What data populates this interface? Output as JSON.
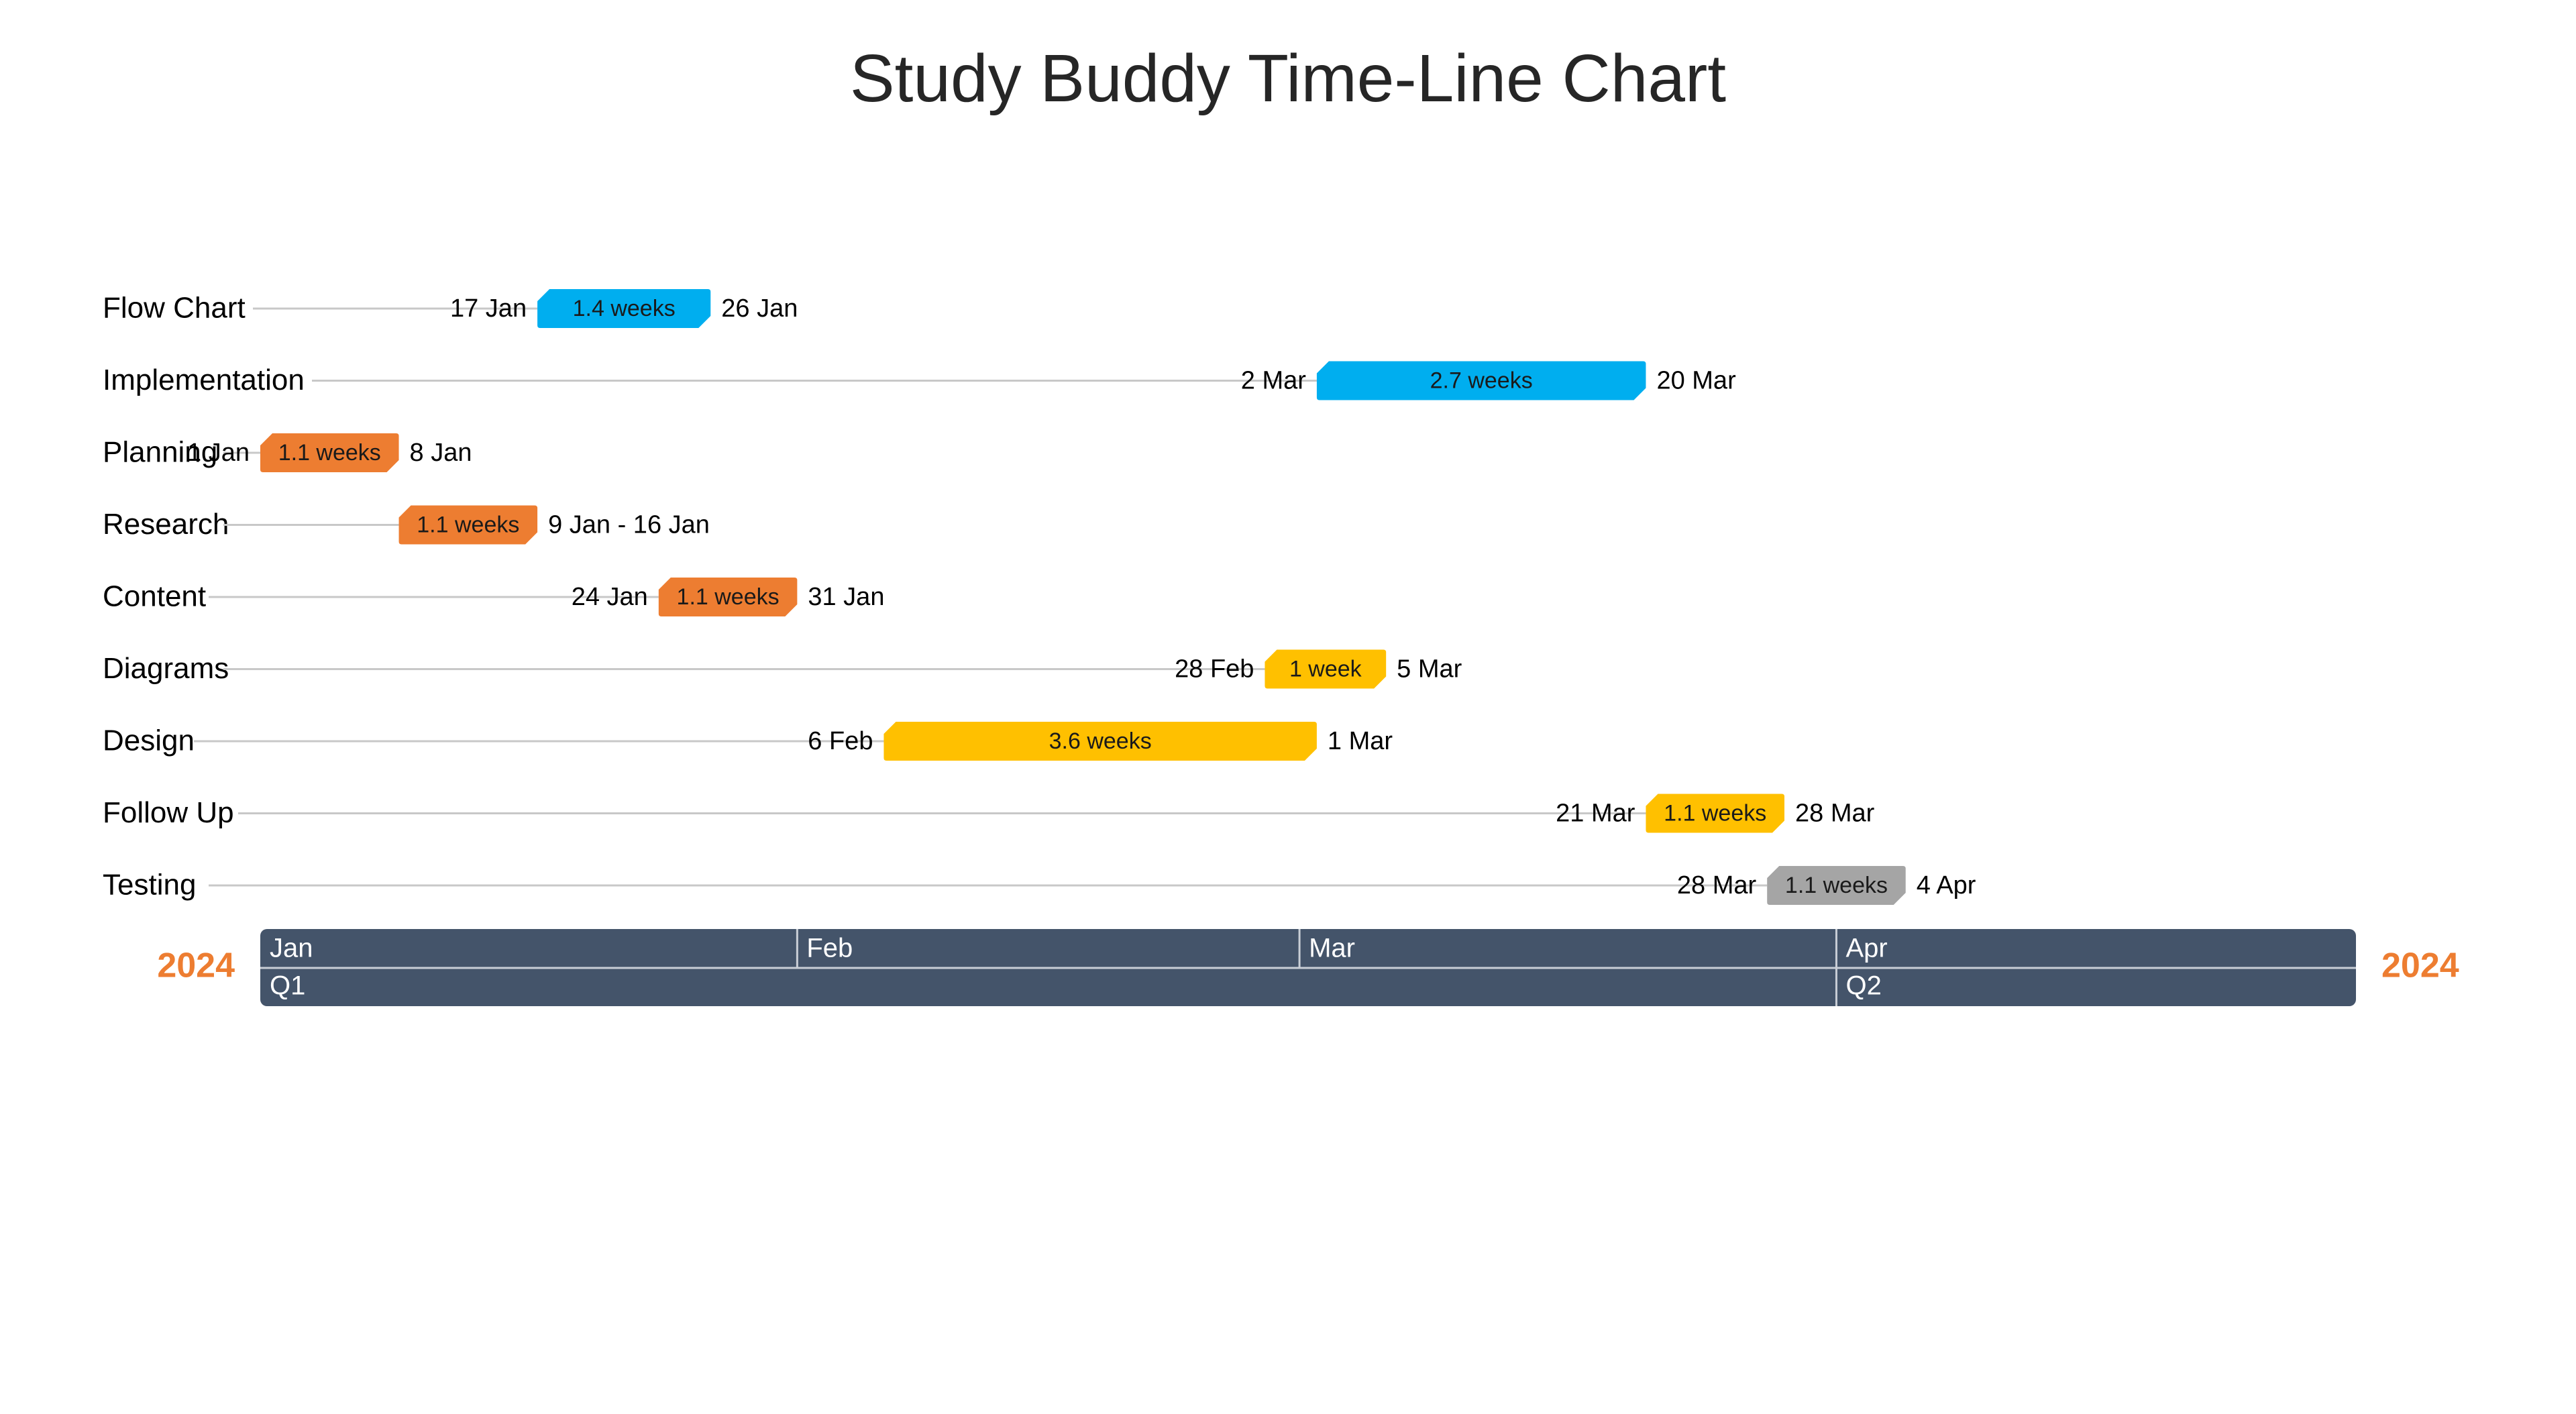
{
  "chart_data": {
    "type": "gantt",
    "title": "Study Buddy Time-Line Chart",
    "year": "2024",
    "x_range": [
      "2024-01-01",
      "2024-04-30"
    ],
    "months": [
      {
        "label": "Jan",
        "start": "2024-01-01"
      },
      {
        "label": "Feb",
        "start": "2024-02-01"
      },
      {
        "label": "Mar",
        "start": "2024-03-01"
      },
      {
        "label": "Apr",
        "start": "2024-04-01"
      }
    ],
    "quarters": [
      {
        "label": "Q1",
        "start": "2024-01-01"
      },
      {
        "label": "Q2",
        "start": "2024-04-01"
      }
    ],
    "tasks": [
      {
        "name": "Flow Chart",
        "start": "2024-01-17",
        "end": "2024-01-26",
        "start_label": "17 Jan",
        "end_label": "26 Jan",
        "duration_label": "1.4 weeks",
        "color": "#00aeef"
      },
      {
        "name": "Implementation",
        "start": "2024-03-02",
        "end": "2024-03-20",
        "start_label": "2 Mar",
        "end_label": "20 Mar",
        "duration_label": "2.7 weeks",
        "color": "#00aeef"
      },
      {
        "name": "Planning",
        "start": "2024-01-01",
        "end": "2024-01-08",
        "start_label": "1 Jan",
        "end_label": "8 Jan",
        "duration_label": "1.1 weeks",
        "color": "#ed7d31"
      },
      {
        "name": "Research",
        "start": "2024-01-09",
        "end": "2024-01-16",
        "range_label": "9 Jan - 16 Jan",
        "duration_label": "1.1 weeks",
        "color": "#ed7d31"
      },
      {
        "name": "Content",
        "start": "2024-01-24",
        "end": "2024-01-31",
        "start_label": "24 Jan",
        "end_label": "31 Jan",
        "duration_label": "1.1 weeks",
        "color": "#ed7d31"
      },
      {
        "name": "Diagrams",
        "start": "2024-02-28",
        "end": "2024-03-05",
        "start_label": "28 Feb",
        "end_label": "5 Mar",
        "duration_label": "1 week",
        "color": "#ffc000"
      },
      {
        "name": "Design",
        "start": "2024-02-06",
        "end": "2024-03-01",
        "start_label": "6 Feb",
        "end_label": "1 Mar",
        "duration_label": "3.6 weeks",
        "color": "#ffc000"
      },
      {
        "name": "Follow Up",
        "start": "2024-03-21",
        "end": "2024-03-28",
        "start_label": "21 Mar",
        "end_label": "28 Mar",
        "duration_label": "1.1 weeks",
        "color": "#ffc000"
      },
      {
        "name": "Testing",
        "start": "2024-03-28",
        "end": "2024-04-04",
        "start_label": "28 Mar",
        "end_label": "4 Apr",
        "duration_label": "1.1 weeks",
        "color": "#a5a5a5"
      }
    ],
    "colors": {
      "axis_band": "#44546a",
      "year_label": "#ed7d31",
      "connector": "#c8c8c8",
      "text": "#000000"
    }
  }
}
